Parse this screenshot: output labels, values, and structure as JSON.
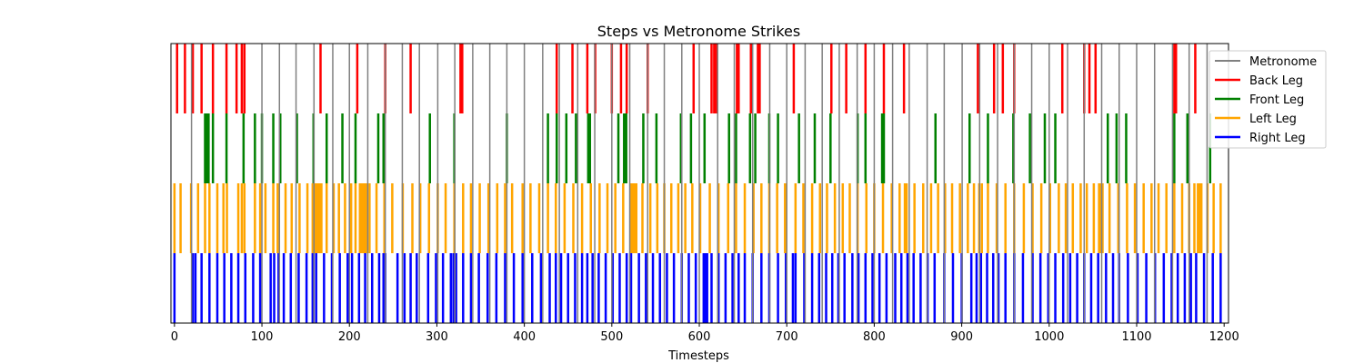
{
  "chart_data": {
    "type": "event-raster",
    "title": "Steps vs Metronome Strikes",
    "xlabel": "Timesteps",
    "ylabel": "",
    "xlim": [
      -4,
      1205
    ],
    "xticks": [
      0,
      100,
      200,
      300,
      400,
      500,
      600,
      700,
      800,
      900,
      1000,
      1100,
      1200
    ],
    "grid": false,
    "legend_position": "top-right",
    "colors": {
      "metronome": "#808080",
      "back": "#ff0000",
      "front": "#008000",
      "left": "#ffa500",
      "right": "#0000ff"
    },
    "metronome": {
      "name": "Metronome",
      "band": "full",
      "times": [
        19.5,
        100,
        120,
        139,
        159.5,
        181,
        200,
        221,
        241,
        260.5,
        280,
        301,
        320.5,
        341,
        360.5,
        380,
        400,
        421,
        440,
        461,
        480.5,
        500,
        520.5,
        541,
        560,
        580,
        600,
        621,
        640,
        661,
        680.5,
        700,
        721,
        740.5,
        760,
        780.5,
        800,
        821,
        840,
        860.5,
        880,
        900.5,
        920.5,
        941,
        960,
        980,
        1000,
        1021,
        1040,
        1060,
        1080,
        1100,
        1120.5,
        1141,
        1160,
        1180.5
      ]
    },
    "series": [
      {
        "name": "Back Leg",
        "band": 4,
        "times": [
          3,
          12,
          21,
          31,
          44,
          59.5,
          71,
          77,
          80,
          167,
          209,
          241,
          270,
          327,
          329,
          437,
          455,
          472,
          481,
          500,
          510.5,
          517,
          541,
          593.5,
          614,
          617,
          619.5,
          643,
          645,
          659,
          667,
          669,
          708,
          751,
          768,
          790,
          811,
          834,
          918.5,
          937,
          947,
          960,
          1015,
          1040,
          1046,
          1053,
          1143,
          1145,
          1167
        ]
      },
      {
        "name": "Front Leg",
        "band": 3,
        "times": [
          35,
          37,
          39,
          44,
          59.5,
          79,
          92,
          100,
          113,
          121,
          140,
          159,
          174,
          192,
          207,
          233,
          239,
          292,
          320,
          380,
          427,
          437,
          448,
          459,
          473,
          475,
          507.5,
          514,
          516.5,
          536,
          551,
          579,
          590.5,
          606,
          634,
          642,
          658,
          664,
          680,
          690,
          714,
          732,
          750,
          781,
          790,
          809,
          811,
          870,
          909,
          930,
          959,
          978,
          995,
          1007,
          1067,
          1077,
          1088,
          1143,
          1158,
          1184
        ]
      },
      {
        "name": "Left Leg",
        "band": 2,
        "times": [
          0,
          7,
          19,
          27,
          35,
          40,
          49,
          56,
          60,
          73,
          77,
          80,
          92,
          98,
          104,
          113,
          118,
          127,
          134,
          143,
          152,
          158,
          160,
          162,
          164,
          166,
          168,
          174,
          182,
          188,
          195,
          202,
          207,
          212,
          214,
          216,
          218,
          220,
          223,
          231,
          240,
          249,
          261,
          272,
          281,
          291,
          301,
          310,
          320,
          330,
          339,
          349,
          359,
          369,
          378,
          386,
          398,
          407,
          417,
          427,
          436,
          446,
          456,
          466,
          476,
          486,
          495,
          504,
          513,
          522,
          524,
          526,
          528,
          535,
          544,
          552,
          560,
          568,
          576,
          584,
          592,
          601,
          612,
          622,
          633,
          642,
          652,
          662,
          671,
          680,
          689,
          698,
          710,
          719,
          729,
          738,
          746,
          755,
          764,
          772,
          781,
          791,
          800,
          810,
          820,
          829,
          835,
          837,
          846,
          856,
          865,
          873,
          881,
          889,
          898,
          907,
          914,
          920,
          923,
          930,
          940,
          950,
          960,
          971,
          981,
          991,
          1001,
          1011,
          1019,
          1027,
          1036,
          1043,
          1051,
          1057,
          1059,
          1061,
          1069,
          1079,
          1089,
          1098,
          1108,
          1117,
          1125,
          1134,
          1143,
          1152,
          1160,
          1166,
          1170,
          1172,
          1174,
          1181,
          1188,
          1196
        ]
      },
      {
        "name": "Right Leg",
        "band": 1,
        "times": [
          0,
          21,
          24,
          31,
          40,
          49,
          57,
          65,
          73,
          81,
          90,
          98,
          110,
          114,
          119,
          125,
          133,
          142,
          151,
          158,
          162,
          171,
          180,
          189,
          198,
          203,
          211,
          218,
          226,
          234,
          239,
          241,
          255,
          263,
          270,
          277,
          290,
          299,
          307,
          316,
          319,
          322,
          330,
          339,
          348,
          358,
          368,
          378,
          388,
          398,
          409,
          419,
          429,
          436,
          442,
          450,
          458,
          466,
          472,
          478,
          485,
          493,
          501,
          509,
          517,
          522,
          531,
          539,
          547,
          555,
          563,
          571,
          580,
          588,
          596,
          605,
          607,
          609,
          614,
          622,
          630,
          638,
          645,
          652,
          661,
          671,
          680,
          690,
          699,
          707,
          710,
          720,
          729,
          737,
          745,
          752,
          759,
          766,
          775,
          782,
          790,
          798,
          806,
          814,
          824,
          831,
          838,
          845,
          853,
          861,
          869,
          880,
          890,
          900,
          911,
          917,
          922,
          929,
          936,
          942,
          950,
          960,
          970,
          981,
          990,
          999,
          1007,
          1016,
          1024,
          1032,
          1040,
          1048,
          1056,
          1065,
          1073,
          1080,
          1090,
          1101,
          1111,
          1121,
          1131,
          1140,
          1147,
          1155,
          1162,
          1168,
          1177,
          1187,
          1196
        ]
      }
    ]
  }
}
